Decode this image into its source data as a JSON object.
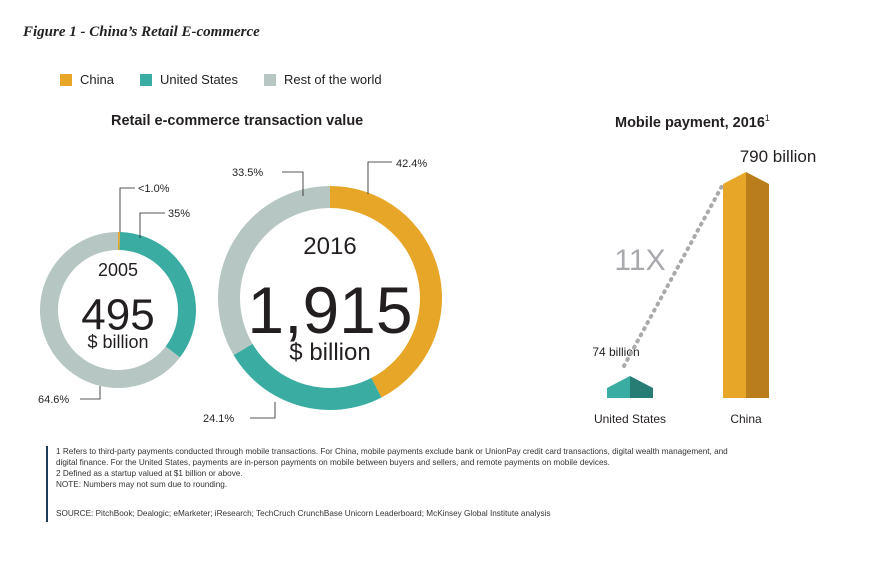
{
  "figure_title": "Figure 1 - China’s Retail E-commerce",
  "legend": [
    {
      "label": "China",
      "color": "#e8a628"
    },
    {
      "label": "United States",
      "color": "#3aaca1"
    },
    {
      "label": "Rest of the world",
      "color": "#b6c6c3"
    }
  ],
  "left_section_title": "Retail e-commerce transaction value",
  "right_section_title": "Mobile payment, 2016",
  "right_section_sup": "1",
  "chart_data": [
    {
      "type": "pie",
      "year": "2005",
      "total": "495",
      "unit": "$ billion",
      "series": [
        {
          "name": "China",
          "value": 0.4,
          "label": "<1.0%"
        },
        {
          "name": "United States",
          "value": 35.0,
          "label": "35%"
        },
        {
          "name": "Rest of the world",
          "value": 64.6,
          "label": "64.6%"
        }
      ]
    },
    {
      "type": "pie",
      "year": "2016",
      "total": "1,915",
      "unit": "$ billion",
      "series": [
        {
          "name": "China",
          "value": 42.4,
          "label": "42.4%"
        },
        {
          "name": "United States",
          "value": 24.1,
          "label": "24.1%"
        },
        {
          "name": "Rest of the world",
          "value": 33.5,
          "label": "33.5%"
        }
      ]
    },
    {
      "type": "bar",
      "categories": [
        "United States",
        "China"
      ],
      "values": [
        74,
        790
      ],
      "value_labels": [
        "74 billion",
        "790 billion"
      ],
      "ratio_label": "11X"
    }
  ],
  "footnotes": [
    "1    Refers to third-party payments conducted through mobile transactions. For China, mobile payments exclude bank or UnionPay credit card transactions, digital wealth management, and",
    "      digital finance.  For the United States, payments are in-person payments on mobile between buyers and sellers, and remote payments on mobile devices.",
    "2    Defined as a startup valued at $1 billion or above.",
    "NOTE: Numbers may not sum due to rounding."
  ],
  "source": "SOURCE: PitchBook; Dealogic; eMarketer; iResearch; TechCruch CrunchBase Unicorn Leaderboard; McKinsey Global Institute analysis",
  "colors": {
    "china": "#e8a628",
    "china_dark": "#b97e1b",
    "us": "#3aaca1",
    "us_dark": "#277d74",
    "row": "#b6c6c3",
    "dotted": "#a8aaab",
    "ratio": "#a7a9ac"
  }
}
